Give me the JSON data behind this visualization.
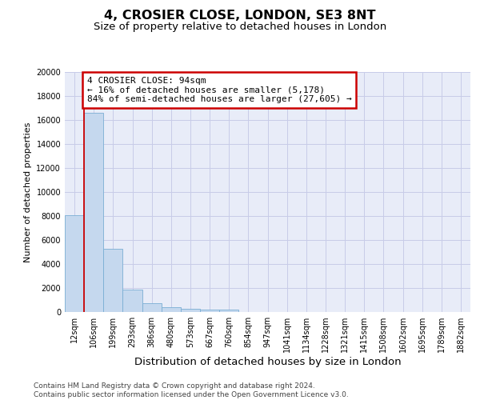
{
  "title_line1": "4, CROSIER CLOSE, LONDON, SE3 8NT",
  "title_line2": "Size of property relative to detached houses in London",
  "xlabel": "Distribution of detached houses by size in London",
  "ylabel": "Number of detached properties",
  "categories": [
    "12sqm",
    "106sqm",
    "199sqm",
    "293sqm",
    "386sqm",
    "480sqm",
    "573sqm",
    "667sqm",
    "760sqm",
    "854sqm",
    "947sqm",
    "1041sqm",
    "1134sqm",
    "1228sqm",
    "1321sqm",
    "1415sqm",
    "1508sqm",
    "1602sqm",
    "1695sqm",
    "1789sqm",
    "1882sqm"
  ],
  "values": [
    8100,
    16600,
    5300,
    1850,
    750,
    370,
    270,
    220,
    200,
    0,
    0,
    0,
    0,
    0,
    0,
    0,
    0,
    0,
    0,
    0,
    0
  ],
  "bar_color": "#c5d8ee",
  "bar_edge_color": "#7aaed4",
  "vline_color": "#cc0000",
  "vline_pos": 0.5,
  "annotation_text": "4 CROSIER CLOSE: 94sqm\n← 16% of detached houses are smaller (5,178)\n84% of semi-detached houses are larger (27,605) →",
  "annotation_box_edgecolor": "#cc0000",
  "ylim": [
    0,
    20000
  ],
  "yticks": [
    0,
    2000,
    4000,
    6000,
    8000,
    10000,
    12000,
    14000,
    16000,
    18000,
    20000
  ],
  "grid_color": "#c8cce8",
  "background_color": "#e8ecf8",
  "footer_text": "Contains HM Land Registry data © Crown copyright and database right 2024.\nContains public sector information licensed under the Open Government Licence v3.0.",
  "title_fontsize": 11.5,
  "subtitle_fontsize": 9.5,
  "xlabel_fontsize": 9.5,
  "ylabel_fontsize": 8,
  "tick_fontsize": 7,
  "footer_fontsize": 6.5,
  "annotation_fontsize": 8
}
